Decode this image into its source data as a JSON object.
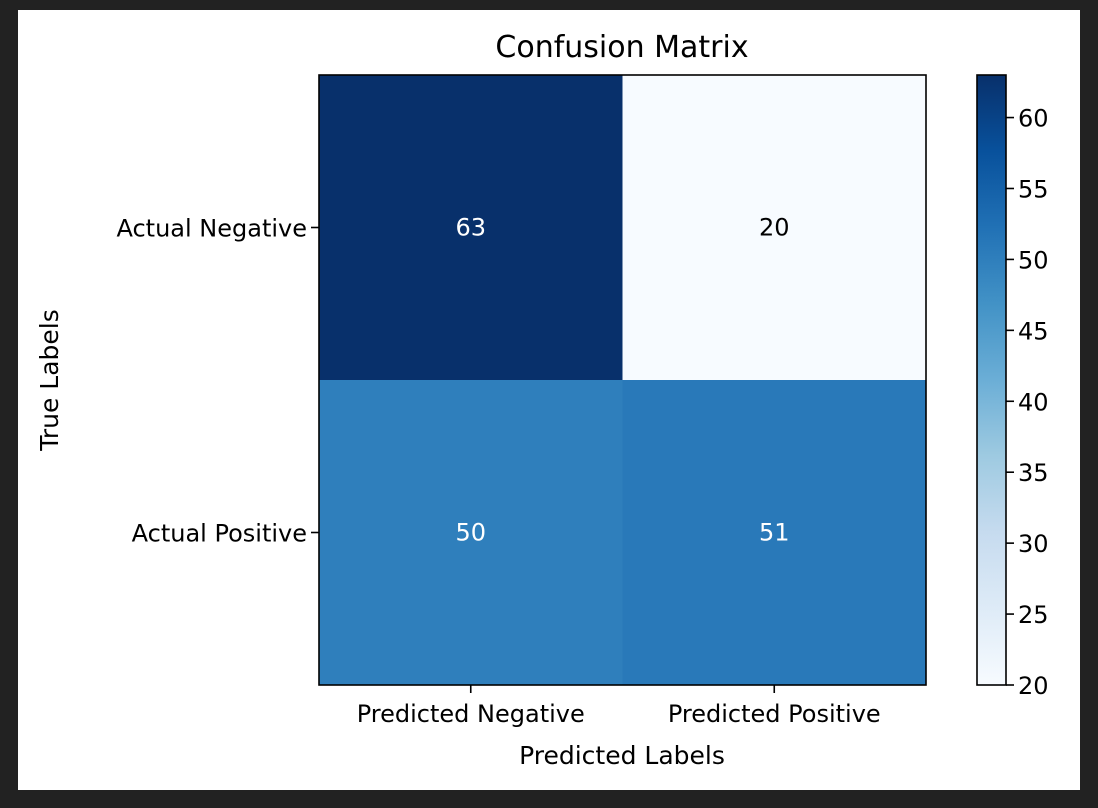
{
  "chart_data": {
    "type": "heatmap",
    "title": "Confusion Matrix",
    "xlabel": "Predicted Labels",
    "ylabel": "True Labels",
    "x_categories": [
      "Predicted Negative",
      "Predicted Positive"
    ],
    "y_categories": [
      "Actual Negative",
      "Actual Positive"
    ],
    "values": [
      [
        63,
        20
      ],
      [
        50,
        51
      ]
    ],
    "colormap": "Blues",
    "color_range": [
      20,
      63
    ],
    "colorbar_ticks": [
      20,
      25,
      30,
      35,
      40,
      45,
      50,
      55,
      60
    ],
    "colorbar": true,
    "grid": false
  }
}
